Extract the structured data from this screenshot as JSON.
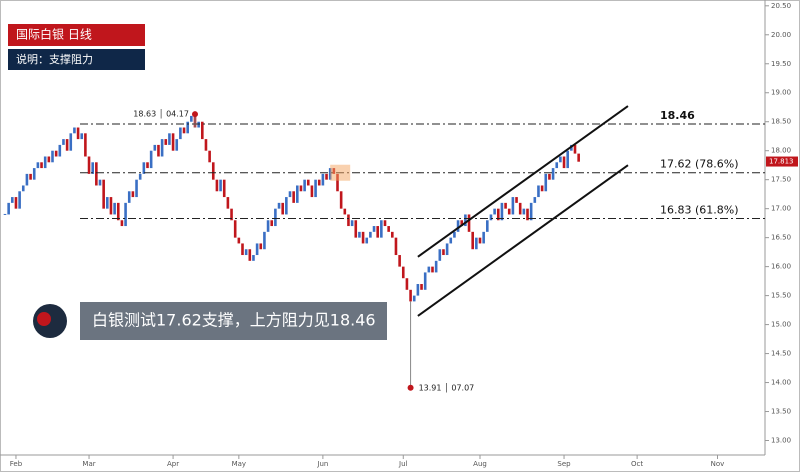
{
  "chart_data": {
    "type": "candlestick",
    "title": "国际白银  日线",
    "subtitle": "说明：支撑阻力",
    "annotation_text": "白银测试17.62支撑，上方阻力见18.46",
    "up_color": "#3a6fc4",
    "down_color": "#c0161c",
    "close": [
      16.9,
      17.1,
      17.2,
      17.0,
      17.3,
      17.4,
      17.6,
      17.5,
      17.7,
      17.8,
      17.7,
      17.9,
      17.8,
      18.0,
      17.9,
      18.1,
      18.2,
      18.0,
      18.3,
      18.4,
      18.2,
      18.3,
      17.9,
      17.6,
      17.8,
      17.4,
      17.5,
      17.0,
      17.2,
      16.9,
      17.1,
      16.8,
      16.7,
      17.1,
      17.3,
      17.2,
      17.5,
      17.6,
      17.8,
      17.7,
      18.0,
      18.1,
      17.9,
      18.2,
      18.1,
      18.3,
      18.0,
      18.2,
      18.4,
      18.3,
      18.5,
      18.6,
      18.4,
      18.5,
      18.2,
      18.0,
      17.8,
      17.5,
      17.3,
      17.5,
      17.2,
      17.0,
      16.8,
      16.5,
      16.4,
      16.2,
      16.3,
      16.1,
      16.2,
      16.4,
      16.3,
      16.6,
      16.8,
      16.7,
      17.0,
      17.1,
      16.9,
      17.2,
      17.3,
      17.1,
      17.4,
      17.3,
      17.5,
      17.4,
      17.2,
      17.5,
      17.4,
      17.6,
      17.5,
      17.7,
      17.6,
      17.3,
      17.0,
      16.9,
      16.7,
      16.8,
      16.5,
      16.6,
      16.4,
      16.5,
      16.6,
      16.7,
      16.5,
      16.8,
      16.7,
      16.6,
      16.5,
      16.2,
      16.0,
      15.8,
      15.6,
      15.4,
      15.5,
      15.7,
      15.6,
      15.9,
      16.0,
      15.9,
      16.1,
      16.3,
      16.2,
      16.4,
      16.5,
      16.6,
      16.8,
      16.7,
      16.9,
      16.6,
      16.3,
      16.5,
      16.4,
      16.6,
      16.8,
      16.9,
      17.0,
      16.8,
      17.1,
      17.0,
      16.9,
      17.2,
      17.1,
      16.9,
      17.0,
      16.8,
      17.1,
      17.2,
      17.4,
      17.3,
      17.6,
      17.5,
      17.7,
      17.8,
      17.9,
      17.7,
      18.0,
      18.1,
      17.95,
      17.81
    ],
    "xlim": [
      0,
      208
    ],
    "xticks": [
      {
        "value": 3,
        "label": "Feb"
      },
      {
        "value": 23,
        "label": "Mar"
      },
      {
        "value": 46,
        "label": "Apr"
      },
      {
        "value": 64,
        "label": "May"
      },
      {
        "value": 87,
        "label": "Jun"
      },
      {
        "value": 109,
        "label": "Jul"
      },
      {
        "value": 130,
        "label": "Aug"
      },
      {
        "value": 153,
        "label": "Sep"
      },
      {
        "value": 173,
        "label": "Oct"
      },
      {
        "value": 195,
        "label": "Nov"
      }
    ],
    "ylim": [
      12.75,
      20.6
    ],
    "yticks": [
      {
        "value": 13,
        "label": "13.00"
      },
      {
        "value": 13.5,
        "label": "13.50"
      },
      {
        "value": 14,
        "label": "14.00"
      },
      {
        "value": 14.5,
        "label": "14.50"
      },
      {
        "value": 15,
        "label": "15.00"
      },
      {
        "value": 15.5,
        "label": "15.50"
      },
      {
        "value": 16,
        "label": "16.00"
      },
      {
        "value": 16.5,
        "label": "16.50"
      },
      {
        "value": 17,
        "label": "17.00"
      },
      {
        "value": 17.5,
        "label": "17.50"
      },
      {
        "value": 18,
        "label": "18.00"
      },
      {
        "value": 18.5,
        "label": "18.50"
      },
      {
        "value": 19,
        "label": "19.00"
      },
      {
        "value": 19.5,
        "label": "19.50"
      },
      {
        "value": 20,
        "label": "20.00"
      },
      {
        "value": 20.5,
        "label": "20.50"
      }
    ],
    "levels": [
      {
        "value": 18.46,
        "label": "18.46"
      },
      {
        "value": 17.62,
        "label": "17.62  (78.6%)"
      },
      {
        "value": 16.83,
        "label": "16.83  (61.8%)"
      }
    ],
    "extremes": [
      {
        "x": 52,
        "value": 18.63,
        "label": "18.63 │ 04.17"
      },
      {
        "x": 111,
        "value": 13.91,
        "label": "13.91 │ 07.07"
      }
    ],
    "channel": {
      "x": [
        113,
        170.5
      ],
      "upper": [
        16.17,
        18.77
      ],
      "lower": [
        15.15,
        17.75
      ]
    },
    "last_price": {
      "value": 17.813,
      "label": "17.813"
    }
  }
}
